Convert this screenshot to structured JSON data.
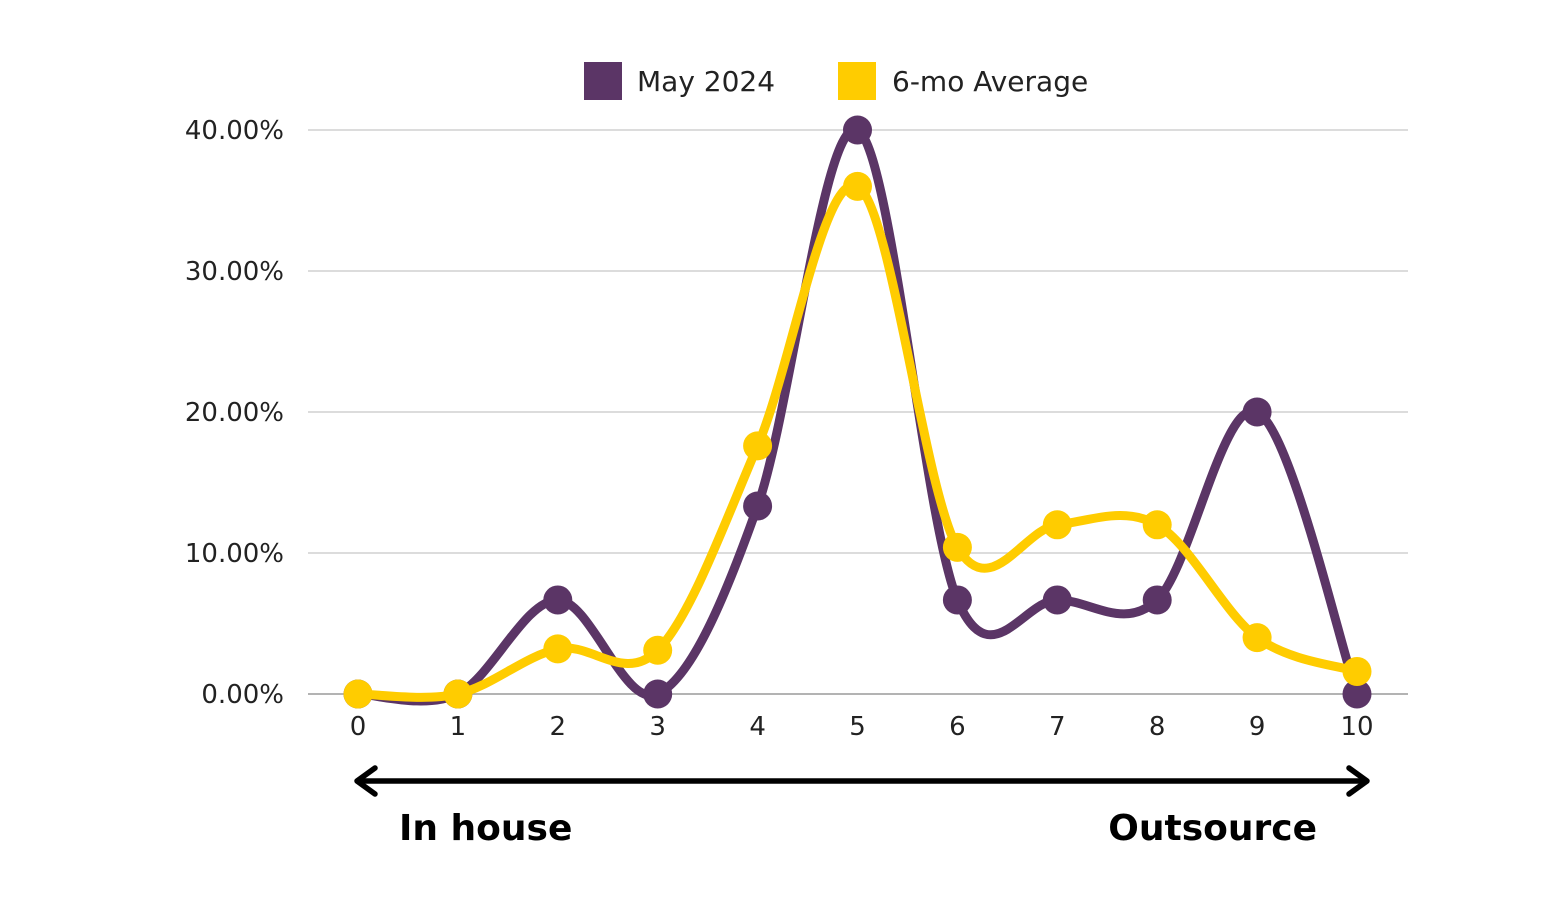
{
  "chart_data": {
    "type": "line",
    "smooth": true,
    "x": [
      0,
      1,
      2,
      3,
      4,
      5,
      6,
      7,
      8,
      9,
      10
    ],
    "series": [
      {
        "name": "May 2024",
        "color": "#5b3566",
        "values": [
          0.0,
          0.0,
          6.67,
          0.0,
          13.33,
          40.0,
          6.67,
          6.67,
          6.67,
          20.0,
          0.0
        ]
      },
      {
        "name": "6-mo Average",
        "color": "#ffcc00",
        "values": [
          0.0,
          0.0,
          3.2,
          3.1,
          17.6,
          36.0,
          10.4,
          12.0,
          12.0,
          4.0,
          1.6
        ]
      }
    ],
    "yticks": [
      "0.00%",
      "10.00%",
      "20.00%",
      "30.00%",
      "40.00%"
    ],
    "ylim": [
      0,
      40
    ],
    "xlim": [
      0,
      10
    ],
    "grid": true,
    "legend_position": "top-center",
    "scale_labels": {
      "left": "In house",
      "right": "Outsource"
    }
  }
}
